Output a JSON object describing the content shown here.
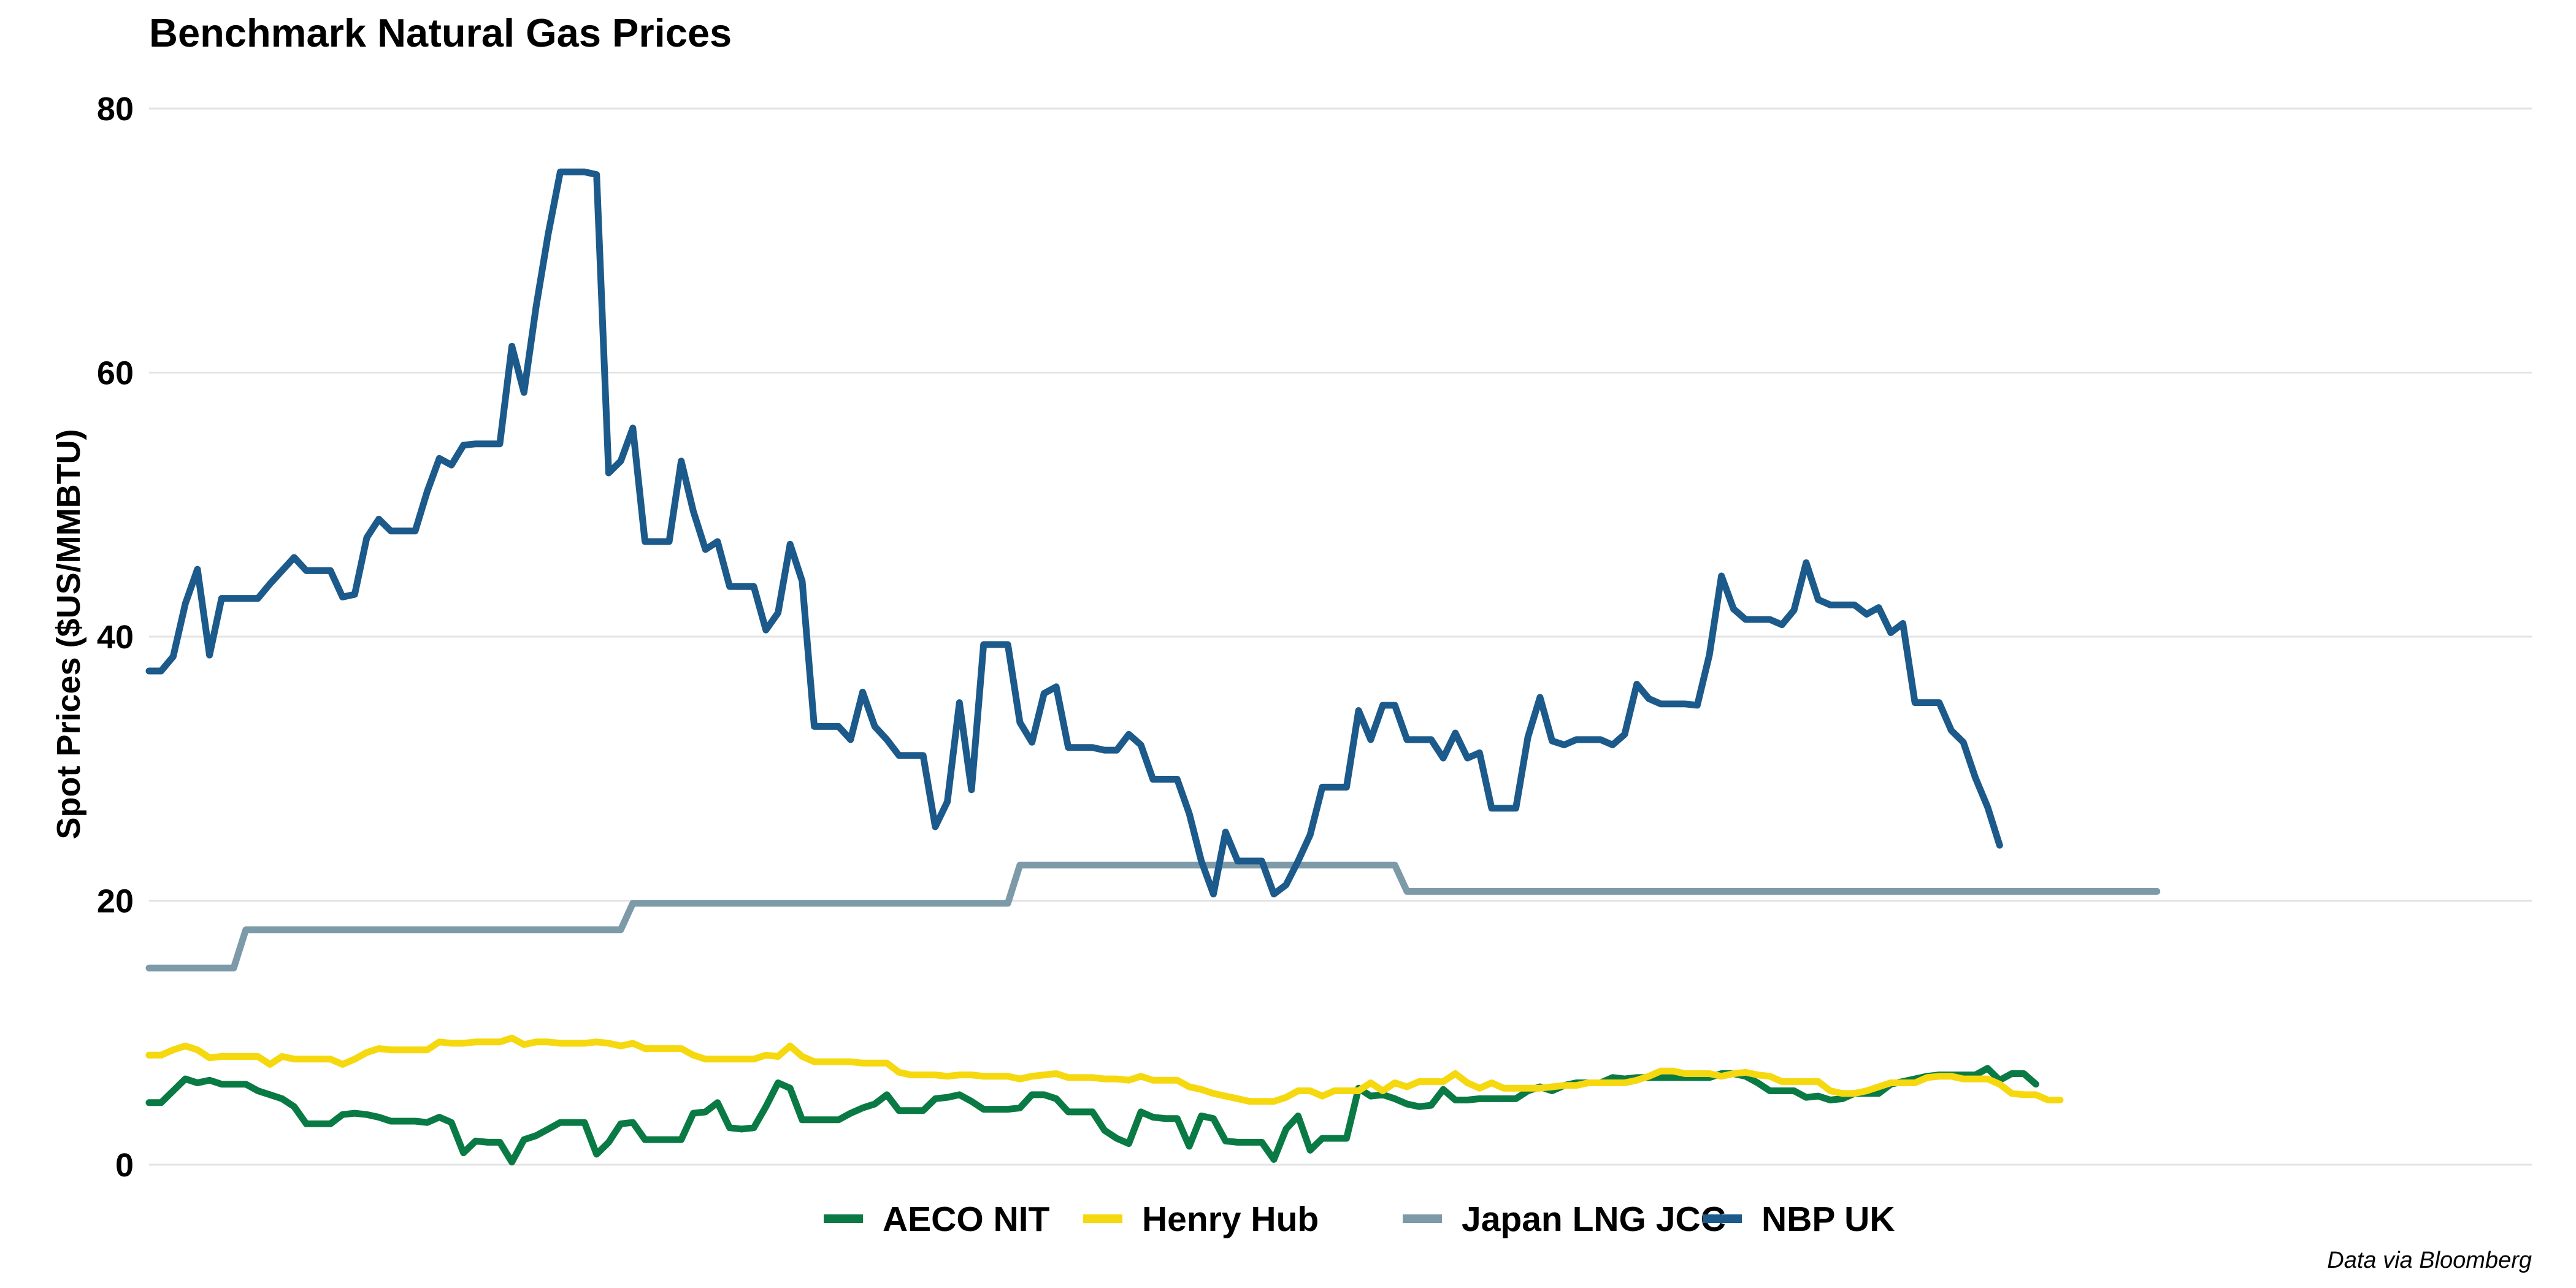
{
  "chart_data": {
    "type": "line",
    "title": "Benchmark Natural Gas Prices",
    "subtitle": "",
    "xlabel": "",
    "ylabel": "Spot Prices ($US/MMBTU)",
    "caption": "Data via Bloomberg",
    "ylim": [
      0,
      80
    ],
    "yticks": [
      0,
      20,
      40,
      60,
      80
    ],
    "grid": "horizontal",
    "legend_position": "bottom",
    "x_count": 165,
    "x_extent": 198,
    "series": [
      {
        "name": "AECO NIT",
        "color": "#0a7a44",
        "values": [
          4.7,
          4.7,
          5.6,
          6.5,
          6.2,
          6.4,
          6.1,
          6.1,
          6.1,
          5.6,
          5.3,
          5.0,
          4.4,
          3.1,
          3.1,
          3.1,
          3.8,
          3.9,
          3.8,
          3.6,
          3.3,
          3.3,
          3.3,
          3.2,
          3.6,
          3.2,
          0.9,
          1.8,
          1.7,
          1.7,
          0.2,
          1.9,
          2.2,
          2.7,
          3.2,
          3.2,
          3.2,
          0.8,
          1.7,
          3.1,
          3.2,
          1.9,
          1.9,
          1.9,
          1.9,
          3.9,
          4.0,
          4.7,
          2.8,
          2.7,
          2.8,
          4.4,
          6.2,
          5.8,
          3.4,
          3.4,
          3.4,
          3.4,
          3.9,
          4.3,
          4.6,
          5.3,
          4.1,
          4.1,
          4.1,
          5.0,
          5.1,
          5.3,
          4.8,
          4.2,
          4.2,
          4.2,
          4.3,
          5.3,
          5.3,
          5.0,
          4.0,
          4.0,
          4.0,
          2.6,
          2.0,
          1.6,
          4.0,
          3.6,
          3.5,
          3.5,
          1.4,
          3.7,
          3.5,
          1.8,
          1.7,
          1.7,
          1.7,
          0.4,
          2.7,
          3.7,
          1.1,
          2.0,
          2.0,
          2.0,
          5.8,
          5.2,
          5.3,
          5.0,
          4.6,
          4.4,
          4.5,
          5.7,
          4.9,
          4.9,
          5.0,
          5.0,
          5.0,
          5.0,
          5.6,
          5.9,
          5.6,
          6.0,
          6.2,
          6.2,
          6.2,
          6.6,
          6.5,
          6.6,
          6.6,
          6.6,
          6.6,
          6.6,
          6.6,
          6.6,
          6.9,
          6.9,
          6.7,
          6.2,
          5.6,
          5.6,
          5.6,
          5.1,
          5.2,
          4.9,
          5.0,
          5.4,
          5.4,
          5.4,
          6.1,
          6.3,
          6.5,
          6.7,
          6.8,
          6.8,
          6.8,
          6.8,
          7.3,
          6.4,
          6.9,
          6.9,
          6.1
        ]
      },
      {
        "name": "Henry Hub",
        "color": "#f6d80f",
        "values": [
          8.3,
          8.3,
          8.7,
          9.0,
          8.7,
          8.1,
          8.2,
          8.2,
          8.2,
          8.2,
          7.6,
          8.2,
          8.0,
          8.0,
          8.0,
          8.0,
          7.6,
          8.0,
          8.5,
          8.8,
          8.7,
          8.7,
          8.7,
          8.7,
          9.3,
          9.2,
          9.2,
          9.3,
          9.3,
          9.3,
          9.6,
          9.1,
          9.3,
          9.3,
          9.2,
          9.2,
          9.2,
          9.3,
          9.2,
          9.0,
          9.2,
          8.8,
          8.8,
          8.8,
          8.8,
          8.3,
          8.0,
          8.0,
          8.0,
          8.0,
          8.0,
          8.3,
          8.2,
          9.0,
          8.2,
          7.8,
          7.8,
          7.8,
          7.8,
          7.7,
          7.7,
          7.7,
          7.0,
          6.8,
          6.8,
          6.8,
          6.7,
          6.8,
          6.8,
          6.7,
          6.7,
          6.7,
          6.5,
          6.7,
          6.8,
          6.9,
          6.6,
          6.6,
          6.6,
          6.5,
          6.5,
          6.4,
          6.7,
          6.4,
          6.4,
          6.4,
          5.9,
          5.7,
          5.4,
          5.2,
          5.0,
          4.8,
          4.8,
          4.8,
          5.1,
          5.6,
          5.6,
          5.2,
          5.6,
          5.6,
          5.6,
          6.2,
          5.6,
          6.2,
          5.9,
          6.3,
          6.3,
          6.3,
          6.9,
          6.2,
          5.8,
          6.2,
          5.8,
          5.8,
          5.8,
          5.8,
          5.9,
          6.0,
          6.0,
          6.2,
          6.2,
          6.2,
          6.2,
          6.4,
          6.7,
          7.1,
          7.1,
          6.9,
          6.9,
          6.9,
          6.7,
          6.9,
          7.0,
          6.8,
          6.7,
          6.3,
          6.3,
          6.3,
          6.3,
          5.6,
          5.4,
          5.4,
          5.6,
          5.9,
          6.2,
          6.2,
          6.2,
          6.6,
          6.7,
          6.7,
          6.5,
          6.5,
          6.5,
          6.1,
          5.4,
          5.3,
          5.3,
          4.9,
          4.9
        ]
      },
      {
        "name": "Japan LNG JCC",
        "color": "#7d9aa8",
        "values": [
          14.9,
          14.9,
          14.9,
          14.9,
          14.9,
          14.9,
          14.9,
          14.9,
          17.8,
          17.8,
          17.8,
          17.8,
          17.8,
          17.8,
          17.8,
          17.8,
          17.8,
          17.8,
          17.8,
          17.8,
          17.8,
          17.8,
          17.8,
          17.8,
          17.8,
          17.8,
          17.8,
          17.8,
          17.8,
          17.8,
          17.8,
          17.8,
          17.8,
          17.8,
          17.8,
          17.8,
          17.8,
          17.8,
          17.8,
          17.8,
          19.8,
          19.8,
          19.8,
          19.8,
          19.8,
          19.8,
          19.8,
          19.8,
          19.8,
          19.8,
          19.8,
          19.8,
          19.8,
          19.8,
          19.8,
          19.8,
          19.8,
          19.8,
          19.8,
          19.8,
          19.8,
          19.8,
          19.8,
          19.8,
          19.8,
          19.8,
          19.8,
          19.8,
          19.8,
          19.8,
          19.8,
          19.8,
          22.7,
          22.7,
          22.7,
          22.7,
          22.7,
          22.7,
          22.7,
          22.7,
          22.7,
          22.7,
          22.7,
          22.7,
          22.7,
          22.7,
          22.7,
          22.7,
          22.7,
          22.7,
          22.7,
          22.7,
          22.7,
          22.7,
          22.7,
          22.7,
          22.7,
          22.7,
          22.7,
          22.7,
          22.7,
          22.7,
          22.7,
          22.7,
          20.7,
          20.7,
          20.7,
          20.7,
          20.7,
          20.7,
          20.7,
          20.7,
          20.7,
          20.7,
          20.7,
          20.7,
          20.7,
          20.7,
          20.7,
          20.7,
          20.7,
          20.7,
          20.7,
          20.7,
          20.7,
          20.7,
          20.7,
          20.7,
          20.7,
          20.7,
          20.7,
          20.7,
          20.7,
          20.7,
          20.7,
          20.7,
          20.7,
          20.7,
          20.7,
          20.7,
          20.7,
          20.7,
          20.7,
          20.7,
          20.7,
          20.7,
          20.7,
          20.7,
          20.7,
          20.7,
          20.7,
          20.7,
          20.7,
          20.7,
          20.7,
          20.7,
          20.7,
          20.7,
          20.7,
          20.7,
          20.7,
          20.7,
          20.7,
          20.7,
          20.7,
          20.7,
          20.7
        ]
      },
      {
        "name": "NBP UK",
        "color": "#1b5a8a",
        "values": [
          37.4,
          37.4,
          38.5,
          42.5,
          45.1,
          38.6,
          42.9,
          42.9,
          42.9,
          42.9,
          44.0,
          45.0,
          46.0,
          45.0,
          45.0,
          45.0,
          43.0,
          43.2,
          47.5,
          48.9,
          48.0,
          48.0,
          48.0,
          51.0,
          53.5,
          53.0,
          54.5,
          54.6,
          54.6,
          54.6,
          62.0,
          58.5,
          65.0,
          70.5,
          75.2,
          75.2,
          75.2,
          75.0,
          52.4,
          53.3,
          55.8,
          47.2,
          47.2,
          47.2,
          53.3,
          49.5,
          46.6,
          47.2,
          43.8,
          43.8,
          43.8,
          40.5,
          41.8,
          47.0,
          44.2,
          33.2,
          33.2,
          33.2,
          32.2,
          35.8,
          33.2,
          32.2,
          31.0,
          31.0,
          31.0,
          25.6,
          27.5,
          35.0,
          28.4,
          39.4,
          39.4,
          39.4,
          33.5,
          32.0,
          35.7,
          36.2,
          31.6,
          31.6,
          31.6,
          31.4,
          31.4,
          32.6,
          31.8,
          29.2,
          29.2,
          29.2,
          26.6,
          23.0,
          20.5,
          25.2,
          23.0,
          23.0,
          23.0,
          20.5,
          21.2,
          23.0,
          25.0,
          28.6,
          28.6,
          28.6,
          34.4,
          32.2,
          34.8,
          34.8,
          32.2,
          32.2,
          32.2,
          30.8,
          32.7,
          30.8,
          31.2,
          27.0,
          27.0,
          27.0,
          32.4,
          35.4,
          32.1,
          31.8,
          32.2,
          32.2,
          32.2,
          31.8,
          32.6,
          36.4,
          35.3,
          34.9,
          34.9,
          34.9,
          34.8,
          38.6,
          44.6,
          42.1,
          41.3,
          41.3,
          41.3,
          40.9,
          42.0,
          45.6,
          42.8,
          42.4,
          42.4,
          42.4,
          41.7,
          42.2,
          40.3,
          41.0,
          35.0,
          35.0,
          35.0,
          32.9,
          32.0,
          29.3,
          27.1,
          24.2
        ]
      }
    ]
  }
}
